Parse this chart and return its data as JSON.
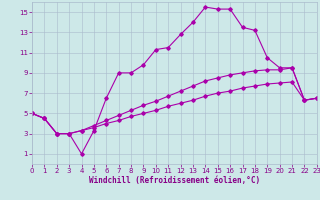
{
  "xlabel": "Windchill (Refroidissement éolien,°C)",
  "bg_color": "#cde8e8",
  "grid_color": "#aabbcc",
  "line_color": "#aa00aa",
  "xmin": 0,
  "xmax": 23,
  "ymin": 0,
  "ymax": 16,
  "yticks": [
    1,
    3,
    5,
    7,
    9,
    11,
    13,
    15
  ],
  "xticks": [
    0,
    1,
    2,
    3,
    4,
    5,
    6,
    7,
    8,
    9,
    10,
    11,
    12,
    13,
    14,
    15,
    16,
    17,
    18,
    19,
    20,
    21,
    22,
    23
  ],
  "series1_x": [
    0,
    1,
    2,
    3,
    4,
    5,
    6,
    7,
    8,
    9,
    10,
    11,
    12,
    13,
    14,
    15,
    16,
    17,
    18,
    19,
    20,
    21,
    22,
    23
  ],
  "series1_y": [
    5.0,
    4.5,
    3.0,
    3.0,
    1.0,
    3.3,
    6.5,
    9.0,
    9.0,
    9.8,
    11.3,
    11.5,
    12.8,
    14.0,
    15.5,
    15.3,
    15.3,
    13.5,
    13.2,
    10.5,
    9.5,
    9.5,
    6.3,
    6.5
  ],
  "series2_x": [
    0,
    1,
    2,
    3,
    4,
    5,
    6,
    7,
    8,
    9,
    10,
    11,
    12,
    13,
    14,
    15,
    16,
    17,
    18,
    19,
    20,
    21,
    22,
    23
  ],
  "series2_y": [
    5.0,
    4.5,
    3.0,
    3.0,
    3.3,
    3.8,
    4.3,
    4.8,
    5.3,
    5.8,
    6.2,
    6.7,
    7.2,
    7.7,
    8.2,
    8.5,
    8.8,
    9.0,
    9.2,
    9.3,
    9.3,
    9.5,
    6.3,
    6.5
  ],
  "series3_x": [
    0,
    1,
    2,
    3,
    4,
    5,
    6,
    7,
    8,
    9,
    10,
    11,
    12,
    13,
    14,
    15,
    16,
    17,
    18,
    19,
    20,
    21,
    22,
    23
  ],
  "series3_y": [
    5.0,
    4.5,
    3.0,
    3.0,
    3.3,
    3.6,
    4.0,
    4.3,
    4.7,
    5.0,
    5.3,
    5.7,
    6.0,
    6.3,
    6.7,
    7.0,
    7.2,
    7.5,
    7.7,
    7.9,
    8.0,
    8.1,
    6.3,
    6.5
  ],
  "xlabel_fontsize": 5.5,
  "tick_fontsize": 5,
  "marker_size": 1.8,
  "line_width": 0.8
}
